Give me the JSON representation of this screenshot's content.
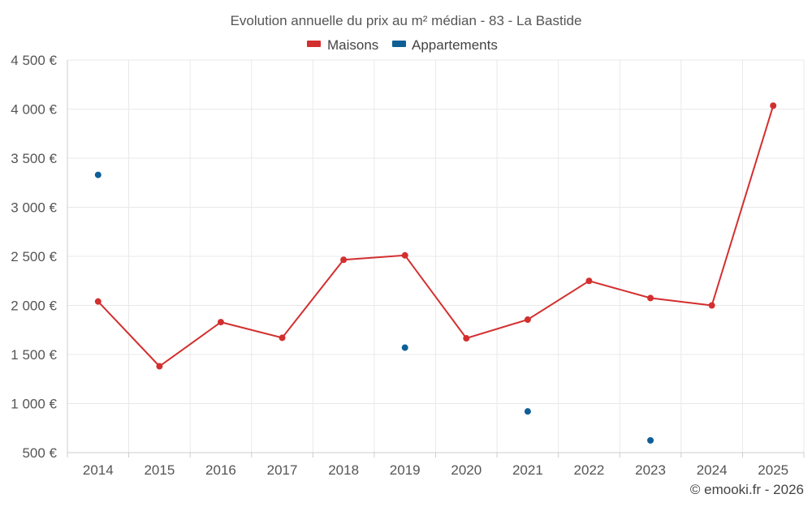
{
  "chart_data": {
    "type": "line",
    "title": "Evolution annuelle du prix au m² médian - 83 - La Bastide",
    "categories": [
      "2014",
      "2015",
      "2016",
      "2017",
      "2018",
      "2019",
      "2020",
      "2021",
      "2022",
      "2023",
      "2024",
      "2025"
    ],
    "series": [
      {
        "name": "Maisons",
        "color": "#d32f2f",
        "values": [
          2040,
          1380,
          1830,
          1670,
          2465,
          2510,
          1665,
          1855,
          2250,
          2075,
          2000,
          4035
        ]
      },
      {
        "name": "Appartements",
        "color": "#0e5f96",
        "values": [
          3330,
          null,
          null,
          null,
          null,
          1570,
          null,
          920,
          null,
          625,
          null,
          null
        ]
      }
    ],
    "ylim": [
      500,
      4500
    ],
    "yticks": [
      500,
      1000,
      1500,
      2000,
      2500,
      3000,
      3500,
      4000,
      4500
    ],
    "ytick_labels": [
      "500 €",
      "1 000 €",
      "1 500 €",
      "2 000 €",
      "2 500 €",
      "3 000 €",
      "3 500 €",
      "4 000 €",
      "4 500 €"
    ],
    "xlabel": "",
    "ylabel": "",
    "grid": true,
    "legend_position": "top-center"
  },
  "credit": "© emooki.fr - 2026"
}
